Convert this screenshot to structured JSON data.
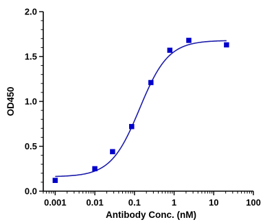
{
  "chart_data": {
    "type": "scatter",
    "title": "",
    "xlabel": "Antibody Conc. (nM)",
    "ylabel": "OD450",
    "x_scale": "log",
    "xlim": [
      0.0005,
      100
    ],
    "ylim": [
      0,
      2.0
    ],
    "x_ticks": [
      0.001,
      0.01,
      0.1,
      1,
      10,
      100
    ],
    "x_tick_labels": [
      "0.001",
      "0.01",
      "0.1",
      "1",
      "10",
      "100"
    ],
    "y_ticks": [
      0,
      0.5,
      1.0,
      1.5,
      2.0
    ],
    "y_tick_labels": [
      "0.0",
      "0.5",
      "1.0",
      "1.5",
      "2.0"
    ],
    "grid": false,
    "legend": "none",
    "colors": {
      "points": "#0000cc",
      "curve": "#1a1aaa",
      "axis": "#000000"
    },
    "series": [
      {
        "kind": "points",
        "x": [
          0.001,
          0.01,
          0.028,
          0.085,
          0.26,
          0.78,
          2.35,
          21
        ],
        "y": [
          0.12,
          0.25,
          0.44,
          0.72,
          1.21,
          1.57,
          1.68,
          1.63
        ]
      },
      {
        "kind": "fit-curve",
        "model": "4PL",
        "bottom": 0.16,
        "top": 1.68,
        "ec50": 0.135,
        "hill": 1.2,
        "x_range": [
          0.001,
          21
        ]
      }
    ]
  }
}
